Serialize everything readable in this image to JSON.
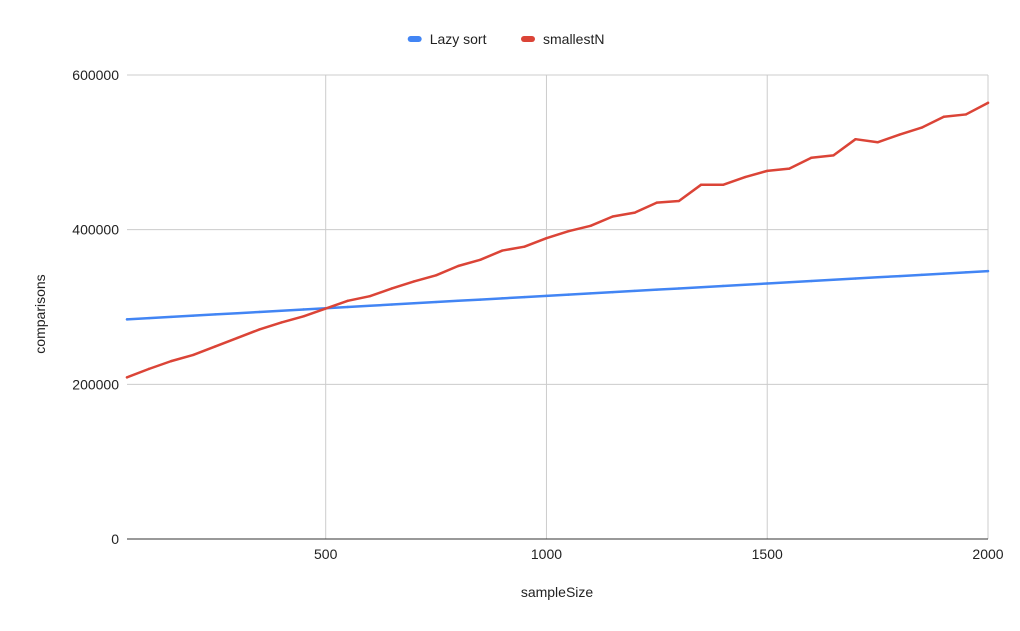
{
  "chart_data": {
    "type": "line",
    "title": "",
    "xlabel": "sampleSize",
    "ylabel": "comparisons",
    "xlim": [
      50,
      2000
    ],
    "ylim": [
      0,
      600000
    ],
    "x_ticks": [
      500,
      1000,
      1500,
      2000
    ],
    "x_tick_labels": [
      "500",
      "1000",
      "1500",
      "2000"
    ],
    "y_ticks": [
      0,
      200000,
      400000,
      600000
    ],
    "y_tick_labels": [
      "0",
      "200000",
      "400000",
      "600000"
    ],
    "grid": true,
    "legend_position": "top",
    "x": [
      50,
      100,
      150,
      200,
      250,
      300,
      350,
      400,
      450,
      500,
      550,
      600,
      650,
      700,
      750,
      800,
      850,
      900,
      950,
      1000,
      1050,
      1100,
      1150,
      1200,
      1250,
      1300,
      1350,
      1400,
      1450,
      1500,
      1550,
      1600,
      1650,
      1700,
      1750,
      1800,
      1850,
      1900,
      1950,
      2000
    ],
    "series": [
      {
        "name": "Lazy sort",
        "color": "#4285f4",
        "values": [
          284000,
          285600,
          287200,
          288800,
          290400,
          292000,
          293600,
          295200,
          296800,
          298400,
          300000,
          301600,
          303200,
          304800,
          306400,
          308000,
          309600,
          311200,
          312800,
          314400,
          316000,
          317600,
          319200,
          320800,
          322400,
          324000,
          325600,
          327200,
          328800,
          330400,
          332000,
          333600,
          335200,
          336800,
          338400,
          340000,
          341600,
          343200,
          344800,
          346400
        ]
      },
      {
        "name": "smallestN",
        "color": "#db4437",
        "values": [
          209000,
          220000,
          230000,
          238000,
          249000,
          260000,
          271000,
          280000,
          288000,
          298000,
          308000,
          314000,
          324000,
          333000,
          341000,
          353000,
          361000,
          373000,
          378000,
          389000,
          398000,
          405000,
          417000,
          422000,
          435000,
          437000,
          458000,
          458000,
          468000,
          476000,
          479000,
          493000,
          496000,
          517000,
          513000,
          523000,
          532000,
          546000,
          549000,
          564000
        ]
      }
    ]
  }
}
